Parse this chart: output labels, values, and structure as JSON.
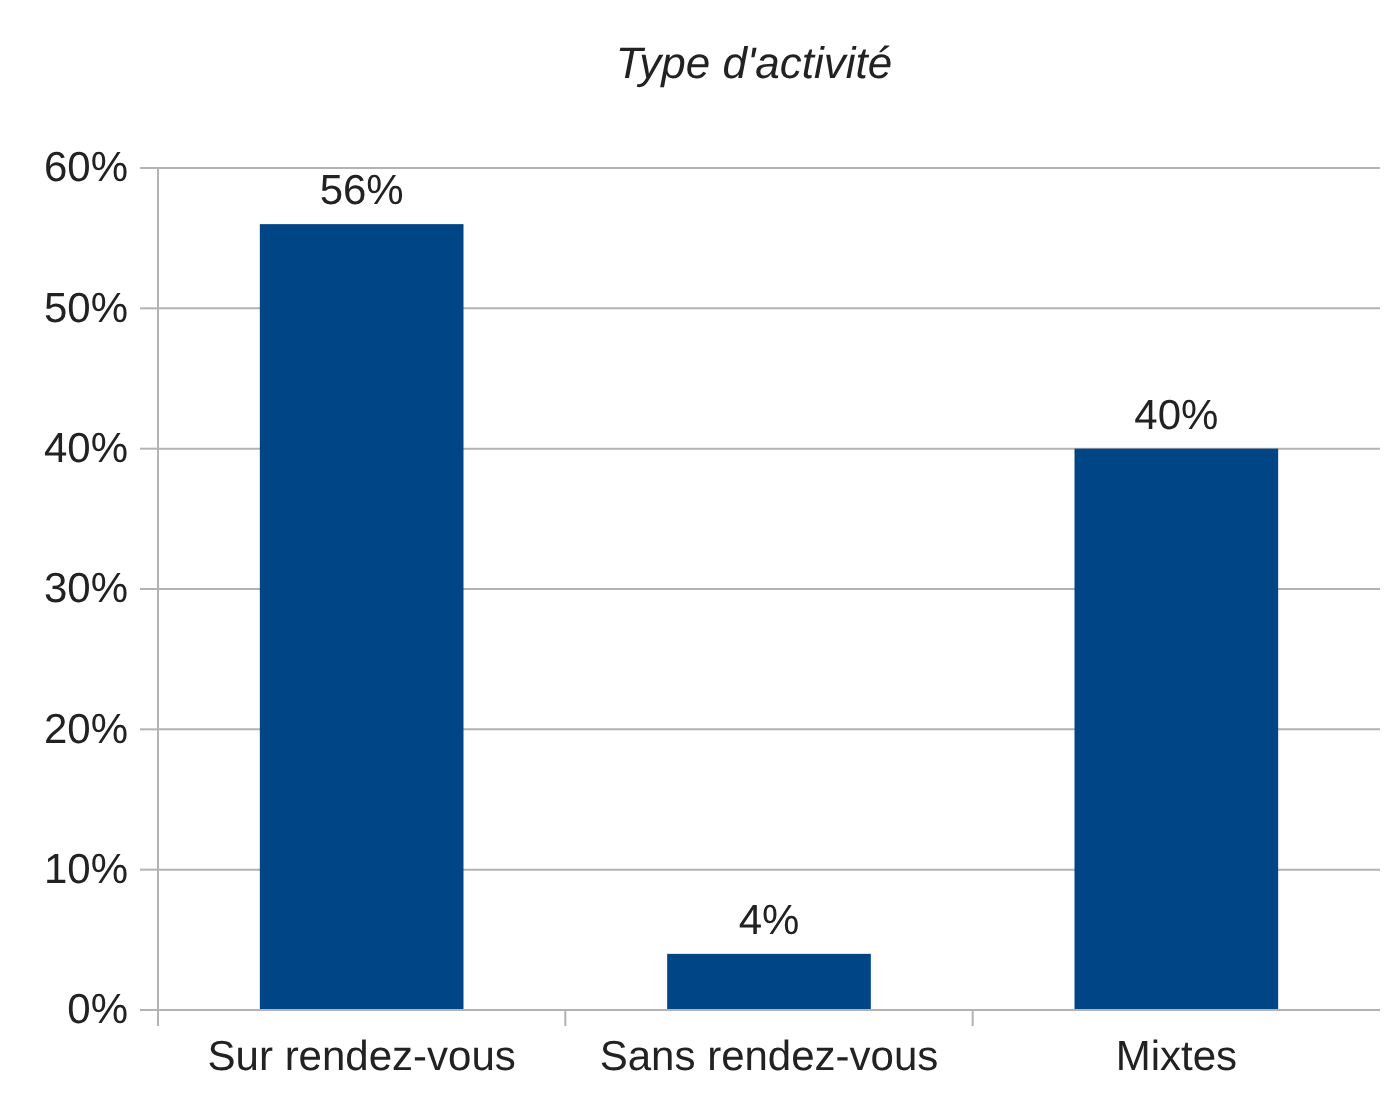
{
  "chart_data": {
    "type": "bar",
    "title": "Type d'activité",
    "categories": [
      "Sur rendez-vous",
      "Sans rendez-vous",
      "Mixtes"
    ],
    "values": [
      56,
      4,
      40
    ],
    "value_labels": [
      "56%",
      "4%",
      "40%"
    ],
    "color": "#004586",
    "ylim": [
      0,
      60
    ],
    "yticks": [
      {
        "value": 0,
        "label": "0%"
      },
      {
        "value": 10,
        "label": "10%"
      },
      {
        "value": 20,
        "label": "20%"
      },
      {
        "value": 30,
        "label": "30%"
      },
      {
        "value": 40,
        "label": "40%"
      },
      {
        "value": 50,
        "label": "50%"
      },
      {
        "value": 60,
        "label": "60%"
      }
    ],
    "grid": "y"
  }
}
